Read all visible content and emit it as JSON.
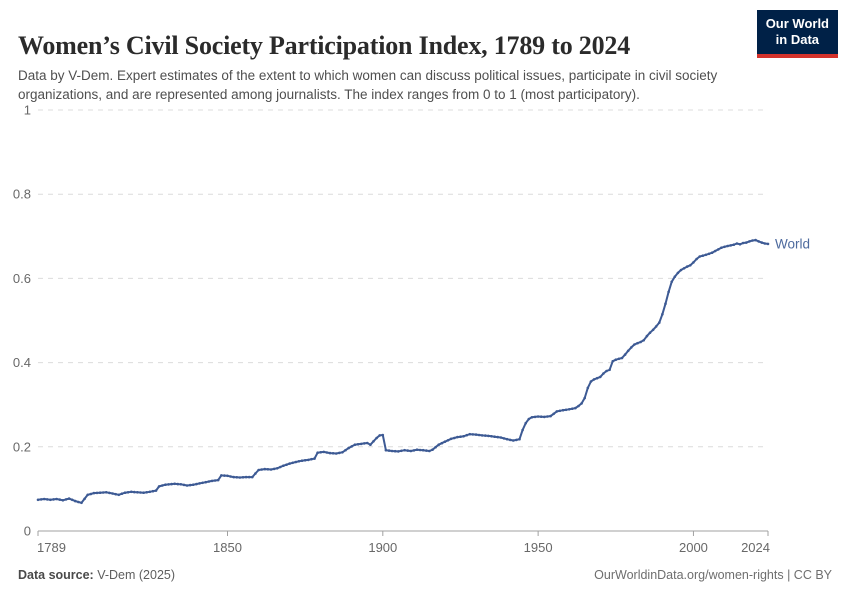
{
  "header": {
    "title": "Women’s Civil Society Participation Index, 1789 to 2024",
    "subtitle": "Data by V-Dem. Expert estimates of the extent to which women can discuss political issues, participate in civil society organizations, and are represented among journalists. The index ranges from 0 to 1 (most participatory).",
    "logo": {
      "line1": "Our World",
      "line2": "in Data"
    }
  },
  "chart_data": {
    "type": "line",
    "title": "Women's Civil Society Participation Index, 1789 to 2024",
    "xlabel": "",
    "ylabel": "",
    "xlim": [
      1789,
      2024
    ],
    "ylim": [
      0,
      1
    ],
    "x_ticks": [
      1789,
      1850,
      1900,
      1950,
      2000,
      2024
    ],
    "y_ticks": [
      0,
      0.2,
      0.4,
      0.6,
      0.8,
      1
    ],
    "grid": "horizontal-dashed",
    "legend": "series-label-at-line-end",
    "series": [
      {
        "name": "World",
        "color": "#3d5a94",
        "points": [
          [
            1789,
            0.074
          ],
          [
            1791,
            0.076
          ],
          [
            1793,
            0.074
          ],
          [
            1795,
            0.076
          ],
          [
            1797,
            0.073
          ],
          [
            1799,
            0.077
          ],
          [
            1801,
            0.071
          ],
          [
            1803,
            0.067
          ],
          [
            1805,
            0.086
          ],
          [
            1807,
            0.09
          ],
          [
            1809,
            0.091
          ],
          [
            1811,
            0.092
          ],
          [
            1813,
            0.089
          ],
          [
            1815,
            0.086
          ],
          [
            1817,
            0.091
          ],
          [
            1819,
            0.093
          ],
          [
            1821,
            0.092
          ],
          [
            1823,
            0.091
          ],
          [
            1825,
            0.093
          ],
          [
            1827,
            0.096
          ],
          [
            1828,
            0.106
          ],
          [
            1830,
            0.11
          ],
          [
            1833,
            0.112
          ],
          [
            1835,
            0.111
          ],
          [
            1837,
            0.108
          ],
          [
            1839,
            0.11
          ],
          [
            1841,
            0.113
          ],
          [
            1843,
            0.116
          ],
          [
            1845,
            0.119
          ],
          [
            1847,
            0.121
          ],
          [
            1848,
            0.132
          ],
          [
            1850,
            0.131
          ],
          [
            1852,
            0.128
          ],
          [
            1854,
            0.127
          ],
          [
            1856,
            0.128
          ],
          [
            1858,
            0.128
          ],
          [
            1860,
            0.145
          ],
          [
            1862,
            0.147
          ],
          [
            1864,
            0.146
          ],
          [
            1866,
            0.149
          ],
          [
            1868,
            0.155
          ],
          [
            1870,
            0.16
          ],
          [
            1872,
            0.164
          ],
          [
            1874,
            0.167
          ],
          [
            1876,
            0.169
          ],
          [
            1878,
            0.172
          ],
          [
            1879,
            0.186
          ],
          [
            1881,
            0.188
          ],
          [
            1883,
            0.185
          ],
          [
            1885,
            0.184
          ],
          [
            1887,
            0.187
          ],
          [
            1889,
            0.197
          ],
          [
            1891,
            0.205
          ],
          [
            1893,
            0.207
          ],
          [
            1895,
            0.209
          ],
          [
            1896,
            0.205
          ],
          [
            1897,
            0.213
          ],
          [
            1898,
            0.221
          ],
          [
            1899,
            0.227
          ],
          [
            1900,
            0.228
          ],
          [
            1901,
            0.192
          ],
          [
            1903,
            0.19
          ],
          [
            1905,
            0.189
          ],
          [
            1907,
            0.192
          ],
          [
            1909,
            0.19
          ],
          [
            1911,
            0.193
          ],
          [
            1913,
            0.192
          ],
          [
            1915,
            0.19
          ],
          [
            1916,
            0.193
          ],
          [
            1917,
            0.199
          ],
          [
            1918,
            0.205
          ],
          [
            1920,
            0.212
          ],
          [
            1922,
            0.219
          ],
          [
            1924,
            0.223
          ],
          [
            1926,
            0.225
          ],
          [
            1928,
            0.23
          ],
          [
            1930,
            0.229
          ],
          [
            1932,
            0.227
          ],
          [
            1934,
            0.226
          ],
          [
            1936,
            0.224
          ],
          [
            1938,
            0.222
          ],
          [
            1940,
            0.218
          ],
          [
            1942,
            0.215
          ],
          [
            1944,
            0.218
          ],
          [
            1945,
            0.24
          ],
          [
            1946,
            0.256
          ],
          [
            1947,
            0.266
          ],
          [
            1948,
            0.27
          ],
          [
            1950,
            0.272
          ],
          [
            1952,
            0.271
          ],
          [
            1954,
            0.273
          ],
          [
            1956,
            0.284
          ],
          [
            1958,
            0.287
          ],
          [
            1960,
            0.289
          ],
          [
            1962,
            0.292
          ],
          [
            1963,
            0.297
          ],
          [
            1964,
            0.303
          ],
          [
            1965,
            0.316
          ],
          [
            1966,
            0.34
          ],
          [
            1967,
            0.355
          ],
          [
            1968,
            0.36
          ],
          [
            1970,
            0.366
          ],
          [
            1971,
            0.374
          ],
          [
            1972,
            0.38
          ],
          [
            1973,
            0.383
          ],
          [
            1974,
            0.403
          ],
          [
            1975,
            0.407
          ],
          [
            1977,
            0.411
          ],
          [
            1978,
            0.419
          ],
          [
            1979,
            0.428
          ],
          [
            1980,
            0.436
          ],
          [
            1981,
            0.443
          ],
          [
            1983,
            0.449
          ],
          [
            1984,
            0.453
          ],
          [
            1985,
            0.463
          ],
          [
            1986,
            0.471
          ],
          [
            1987,
            0.478
          ],
          [
            1988,
            0.486
          ],
          [
            1989,
            0.495
          ],
          [
            1990,
            0.515
          ],
          [
            1991,
            0.54
          ],
          [
            1992,
            0.568
          ],
          [
            1993,
            0.592
          ],
          [
            1994,
            0.604
          ],
          [
            1995,
            0.613
          ],
          [
            1996,
            0.62
          ],
          [
            1997,
            0.624
          ],
          [
            1998,
            0.628
          ],
          [
            1999,
            0.631
          ],
          [
            2000,
            0.638
          ],
          [
            2001,
            0.646
          ],
          [
            2002,
            0.652
          ],
          [
            2004,
            0.656
          ],
          [
            2006,
            0.661
          ],
          [
            2008,
            0.669
          ],
          [
            2009,
            0.673
          ],
          [
            2011,
            0.677
          ],
          [
            2013,
            0.68
          ],
          [
            2014,
            0.683
          ],
          [
            2015,
            0.681
          ],
          [
            2016,
            0.684
          ],
          [
            2017,
            0.685
          ],
          [
            2018,
            0.688
          ],
          [
            2019,
            0.69
          ],
          [
            2020,
            0.691
          ],
          [
            2021,
            0.688
          ],
          [
            2022,
            0.685
          ],
          [
            2023,
            0.683
          ],
          [
            2024,
            0.682
          ]
        ]
      }
    ]
  },
  "footer": {
    "source_label": "Data source:",
    "source_value": " V-Dem (2025)",
    "attribution": "OurWorldinData.org/women-rights | CC BY"
  },
  "colors": {
    "line": "#3d5a94",
    "series_label": "#4d6a9e",
    "logo_bg": "#002147",
    "logo_accent": "#d4322b",
    "grid": "#dcdcdc",
    "axis": "#a1a1a1",
    "tick_text": "#686868",
    "title_text": "#2b2b2b",
    "subtitle_text": "#4f4f4f"
  }
}
